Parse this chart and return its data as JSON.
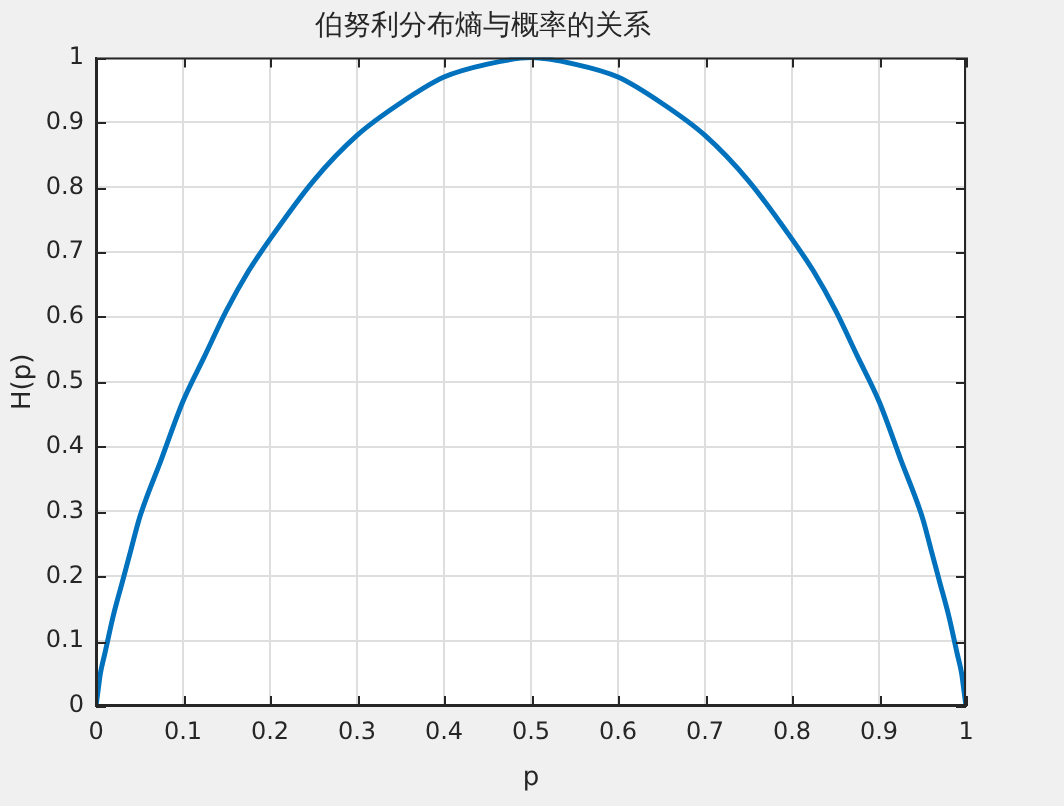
{
  "chart_data": {
    "type": "line",
    "title": "伯努利分布熵与概率的关系",
    "xlabel": "p",
    "ylabel": "H(p)",
    "x": [
      0,
      0.002,
      0.005,
      0.01,
      0.02,
      0.03,
      0.04,
      0.05,
      0.075,
      0.1,
      0.125,
      0.15,
      0.175,
      0.2,
      0.25,
      0.3,
      0.35,
      0.4,
      0.45,
      0.5,
      0.55,
      0.6,
      0.65,
      0.7,
      0.75,
      0.8,
      0.825,
      0.85,
      0.875,
      0.9,
      0.925,
      0.95,
      0.96,
      0.97,
      0.98,
      0.99,
      0.995,
      0.998,
      1
    ],
    "series": [
      {
        "color": "#0072bd",
        "values": [
          0,
          0.02,
          0.05,
          0.08,
          0.14,
          0.19,
          0.24,
          0.29,
          0.38,
          0.47,
          0.54,
          0.61,
          0.67,
          0.72,
          0.81,
          0.88,
          0.93,
          0.97,
          0.99,
          1,
          0.99,
          0.97,
          0.93,
          0.88,
          0.81,
          0.72,
          0.67,
          0.61,
          0.54,
          0.47,
          0.38,
          0.29,
          0.24,
          0.19,
          0.14,
          0.08,
          0.05,
          0.02,
          0
        ]
      }
    ],
    "xlim": [
      0,
      1
    ],
    "ylim": [
      0,
      1
    ],
    "xticks": [
      0,
      0.1,
      0.2,
      0.3,
      0.4,
      0.5,
      0.6,
      0.7,
      0.8,
      0.9,
      1
    ],
    "yticks": [
      0,
      0.1,
      0.2,
      0.3,
      0.4,
      0.5,
      0.6,
      0.7,
      0.8,
      0.9,
      1
    ],
    "grid": true,
    "legend": false,
    "marker": "none",
    "line_style": "solid"
  }
}
